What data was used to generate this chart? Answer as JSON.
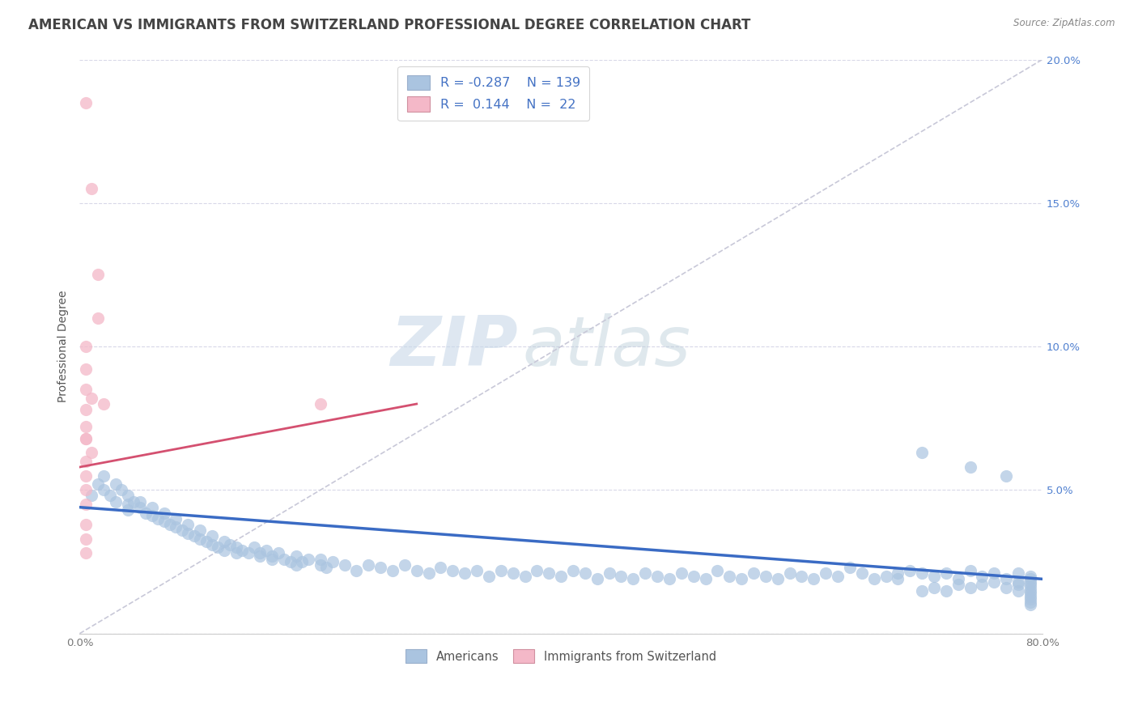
{
  "title": "AMERICAN VS IMMIGRANTS FROM SWITZERLAND PROFESSIONAL DEGREE CORRELATION CHART",
  "source": "Source: ZipAtlas.com",
  "ylabel": "Professional Degree",
  "xlabel": "",
  "watermark_zip": "ZIP",
  "watermark_atlas": "atlas",
  "legend_blue_r": "-0.287",
  "legend_blue_n": "139",
  "legend_pink_r": "0.144",
  "legend_pink_n": "22",
  "legend_label_blue": "Americans",
  "legend_label_pink": "Immigrants from Switzerland",
  "xlim": [
    0.0,
    0.8
  ],
  "ylim": [
    0.0,
    0.2
  ],
  "xticks": [
    0.0,
    0.1,
    0.2,
    0.3,
    0.4,
    0.5,
    0.6,
    0.7,
    0.8
  ],
  "xticklabels": [
    "0.0%",
    "",
    "",
    "",
    "",
    "",
    "",
    "",
    "80.0%"
  ],
  "yticks_left": [
    0.0,
    0.05,
    0.1,
    0.15,
    0.2
  ],
  "yticklabels_left": [
    "",
    "",
    "",
    "",
    ""
  ],
  "yticks_right": [
    0.05,
    0.1,
    0.15,
    0.2
  ],
  "yticklabels_right": [
    "5.0%",
    "10.0%",
    "15.0%",
    "20.0%"
  ],
  "blue_scatter_color": "#aac4e0",
  "pink_scatter_color": "#f4b8c8",
  "blue_line_color": "#3a6bc4",
  "pink_line_color": "#d45070",
  "dashed_color": "#c8c8d8",
  "scatter_blue": [
    [
      0.01,
      0.048
    ],
    [
      0.015,
      0.052
    ],
    [
      0.02,
      0.05
    ],
    [
      0.02,
      0.055
    ],
    [
      0.025,
      0.048
    ],
    [
      0.03,
      0.052
    ],
    [
      0.03,
      0.046
    ],
    [
      0.035,
      0.05
    ],
    [
      0.04,
      0.048
    ],
    [
      0.04,
      0.045
    ],
    [
      0.04,
      0.043
    ],
    [
      0.045,
      0.046
    ],
    [
      0.05,
      0.044
    ],
    [
      0.05,
      0.046
    ],
    [
      0.055,
      0.042
    ],
    [
      0.06,
      0.044
    ],
    [
      0.06,
      0.041
    ],
    [
      0.065,
      0.04
    ],
    [
      0.07,
      0.042
    ],
    [
      0.07,
      0.039
    ],
    [
      0.075,
      0.038
    ],
    [
      0.08,
      0.04
    ],
    [
      0.08,
      0.037
    ],
    [
      0.085,
      0.036
    ],
    [
      0.09,
      0.038
    ],
    [
      0.09,
      0.035
    ],
    [
      0.095,
      0.034
    ],
    [
      0.1,
      0.036
    ],
    [
      0.1,
      0.033
    ],
    [
      0.105,
      0.032
    ],
    [
      0.11,
      0.034
    ],
    [
      0.11,
      0.031
    ],
    [
      0.115,
      0.03
    ],
    [
      0.12,
      0.032
    ],
    [
      0.12,
      0.029
    ],
    [
      0.125,
      0.031
    ],
    [
      0.13,
      0.03
    ],
    [
      0.13,
      0.028
    ],
    [
      0.135,
      0.029
    ],
    [
      0.14,
      0.028
    ],
    [
      0.145,
      0.03
    ],
    [
      0.15,
      0.028
    ],
    [
      0.15,
      0.027
    ],
    [
      0.155,
      0.029
    ],
    [
      0.16,
      0.027
    ],
    [
      0.16,
      0.026
    ],
    [
      0.165,
      0.028
    ],
    [
      0.17,
      0.026
    ],
    [
      0.175,
      0.025
    ],
    [
      0.18,
      0.027
    ],
    [
      0.18,
      0.024
    ],
    [
      0.185,
      0.025
    ],
    [
      0.19,
      0.026
    ],
    [
      0.2,
      0.024
    ],
    [
      0.2,
      0.026
    ],
    [
      0.205,
      0.023
    ],
    [
      0.21,
      0.025
    ],
    [
      0.22,
      0.024
    ],
    [
      0.23,
      0.022
    ],
    [
      0.24,
      0.024
    ],
    [
      0.25,
      0.023
    ],
    [
      0.26,
      0.022
    ],
    [
      0.27,
      0.024
    ],
    [
      0.28,
      0.022
    ],
    [
      0.29,
      0.021
    ],
    [
      0.3,
      0.023
    ],
    [
      0.31,
      0.022
    ],
    [
      0.32,
      0.021
    ],
    [
      0.33,
      0.022
    ],
    [
      0.34,
      0.02
    ],
    [
      0.35,
      0.022
    ],
    [
      0.36,
      0.021
    ],
    [
      0.37,
      0.02
    ],
    [
      0.38,
      0.022
    ],
    [
      0.39,
      0.021
    ],
    [
      0.4,
      0.02
    ],
    [
      0.41,
      0.022
    ],
    [
      0.42,
      0.021
    ],
    [
      0.43,
      0.019
    ],
    [
      0.44,
      0.021
    ],
    [
      0.45,
      0.02
    ],
    [
      0.46,
      0.019
    ],
    [
      0.47,
      0.021
    ],
    [
      0.48,
      0.02
    ],
    [
      0.49,
      0.019
    ],
    [
      0.5,
      0.021
    ],
    [
      0.51,
      0.02
    ],
    [
      0.52,
      0.019
    ],
    [
      0.53,
      0.022
    ],
    [
      0.54,
      0.02
    ],
    [
      0.55,
      0.019
    ],
    [
      0.56,
      0.021
    ],
    [
      0.57,
      0.02
    ],
    [
      0.58,
      0.019
    ],
    [
      0.59,
      0.021
    ],
    [
      0.6,
      0.02
    ],
    [
      0.61,
      0.019
    ],
    [
      0.62,
      0.021
    ],
    [
      0.63,
      0.02
    ],
    [
      0.64,
      0.023
    ],
    [
      0.65,
      0.021
    ],
    [
      0.66,
      0.019
    ],
    [
      0.67,
      0.02
    ],
    [
      0.68,
      0.021
    ],
    [
      0.68,
      0.019
    ],
    [
      0.69,
      0.022
    ],
    [
      0.7,
      0.021
    ],
    [
      0.7,
      0.063
    ],
    [
      0.71,
      0.02
    ],
    [
      0.72,
      0.021
    ],
    [
      0.73,
      0.019
    ],
    [
      0.74,
      0.022
    ],
    [
      0.74,
      0.058
    ],
    [
      0.75,
      0.02
    ],
    [
      0.76,
      0.021
    ],
    [
      0.77,
      0.055
    ],
    [
      0.77,
      0.019
    ],
    [
      0.78,
      0.021
    ],
    [
      0.78,
      0.018
    ],
    [
      0.79,
      0.02
    ],
    [
      0.79,
      0.017
    ],
    [
      0.79,
      0.019
    ],
    [
      0.79,
      0.015
    ],
    [
      0.79,
      0.014
    ],
    [
      0.79,
      0.013
    ],
    [
      0.79,
      0.016
    ],
    [
      0.79,
      0.018
    ],
    [
      0.79,
      0.012
    ],
    [
      0.79,
      0.011
    ],
    [
      0.79,
      0.01
    ],
    [
      0.78,
      0.017
    ],
    [
      0.78,
      0.015
    ],
    [
      0.77,
      0.016
    ],
    [
      0.76,
      0.018
    ],
    [
      0.75,
      0.017
    ],
    [
      0.74,
      0.016
    ],
    [
      0.73,
      0.017
    ],
    [
      0.72,
      0.015
    ],
    [
      0.71,
      0.016
    ],
    [
      0.7,
      0.015
    ]
  ],
  "scatter_pink": [
    [
      0.005,
      0.185
    ],
    [
      0.01,
      0.155
    ],
    [
      0.015,
      0.125
    ],
    [
      0.015,
      0.11
    ],
    [
      0.005,
      0.1
    ],
    [
      0.005,
      0.092
    ],
    [
      0.005,
      0.085
    ],
    [
      0.01,
      0.082
    ],
    [
      0.005,
      0.078
    ],
    [
      0.005,
      0.072
    ],
    [
      0.005,
      0.068
    ],
    [
      0.01,
      0.063
    ],
    [
      0.005,
      0.06
    ],
    [
      0.005,
      0.055
    ],
    [
      0.005,
      0.05
    ],
    [
      0.005,
      0.045
    ],
    [
      0.005,
      0.038
    ],
    [
      0.005,
      0.033
    ],
    [
      0.005,
      0.028
    ],
    [
      0.005,
      0.068
    ],
    [
      0.02,
      0.08
    ],
    [
      0.2,
      0.08
    ]
  ],
  "blue_trendline_x": [
    0.0,
    0.8
  ],
  "blue_trendline_y": [
    0.044,
    0.019
  ],
  "pink_trendline_x": [
    0.0,
    0.28
  ],
  "pink_trendline_y": [
    0.058,
    0.08
  ],
  "dashed_trendline_x": [
    0.0,
    0.8
  ],
  "dashed_trendline_y": [
    0.0,
    0.2
  ],
  "title_fontsize": 12,
  "axis_fontsize": 10,
  "tick_fontsize": 9.5,
  "grid_color": "#d8d8e8",
  "right_tick_color": "#5080d0"
}
